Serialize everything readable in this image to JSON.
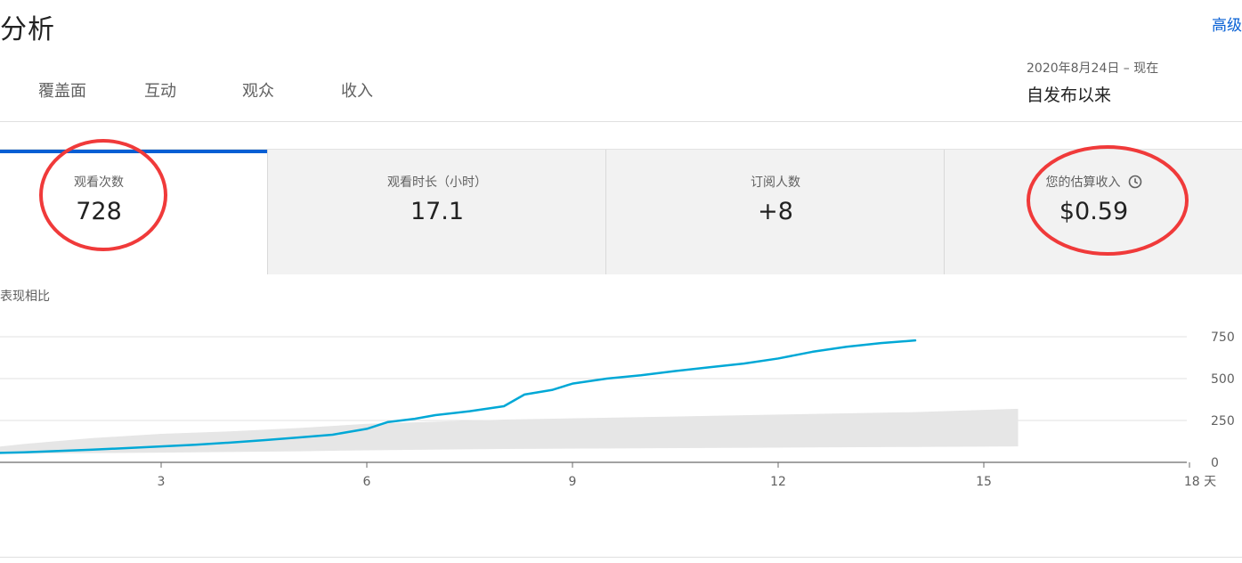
{
  "header": {
    "title": "分析",
    "advanced": "高级"
  },
  "tabs": [
    {
      "label": "覆盖面"
    },
    {
      "label": "互动"
    },
    {
      "label": "观众"
    },
    {
      "label": "收入"
    }
  ],
  "date": {
    "range": "2020年8月24日 – 现在",
    "label": "自发布以来"
  },
  "metrics": [
    {
      "label": "观看次数",
      "value": "728",
      "selected": true
    },
    {
      "label": "观看时长（小时）",
      "value": "17.1"
    },
    {
      "label": "订阅人数",
      "value": "+8"
    },
    {
      "label": "您的估算收入",
      "value": "$0.59",
      "icon": "clock-icon"
    }
  ],
  "annotations": {
    "color": "#f03a3a"
  },
  "performance_label": "表现相比",
  "chart_data": {
    "type": "line",
    "x_unit": "天",
    "xlim": [
      0,
      18
    ],
    "ylim": [
      0,
      800
    ],
    "x_ticks": [
      3,
      6,
      9,
      12,
      15,
      18
    ],
    "x_tick_labels": [
      "3",
      "6",
      "9",
      "12",
      "15",
      "18 天"
    ],
    "y_ticks": [
      0,
      250,
      500,
      750
    ],
    "y_tick_labels": [
      "0",
      "250",
      "500",
      "750"
    ],
    "y_axis_side": "right",
    "grid": true,
    "series": [
      {
        "color": "#00a8d6",
        "x": [
          0,
          0.5,
          1,
          1.5,
          2,
          2.5,
          3,
          3.5,
          4,
          4.5,
          5,
          5.5,
          6,
          6.3,
          6.7,
          7,
          7.5,
          8,
          8.3,
          8.7,
          9,
          9.5,
          10,
          10.5,
          11,
          11.5,
          12,
          12.5,
          13,
          13.5,
          14
        ],
        "values": [
          45,
          55,
          60,
          68,
          76,
          85,
          95,
          105,
          118,
          132,
          148,
          165,
          200,
          240,
          260,
          282,
          305,
          335,
          405,
          432,
          470,
          500,
          520,
          545,
          568,
          590,
          620,
          660,
          690,
          712,
          728
        ]
      }
    ],
    "band": {
      "color": "#e6e6e6",
      "x": [
        0,
        1,
        2,
        3,
        4,
        5,
        6,
        8,
        10,
        12,
        14,
        15.5
      ],
      "upper": [
        65,
        110,
        145,
        170,
        185,
        205,
        230,
        255,
        270,
        285,
        300,
        320
      ],
      "lower": [
        45,
        52,
        55,
        58,
        62,
        66,
        72,
        80,
        84,
        88,
        92,
        95
      ]
    }
  }
}
